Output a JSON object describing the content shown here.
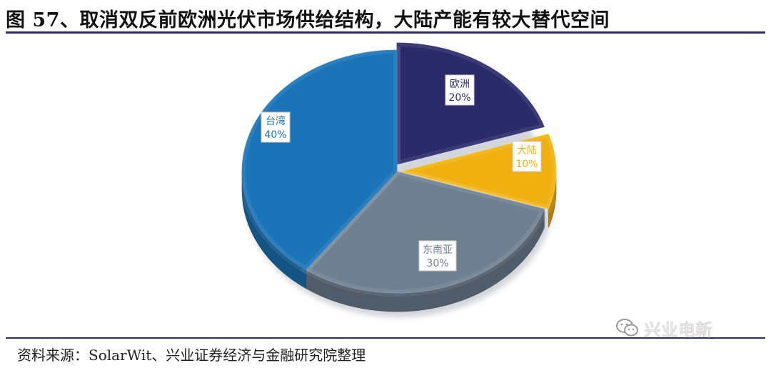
{
  "figure": {
    "title": "图 57、取消双反前欧洲光伏市场供给结构，大陆产能有较大替代空间",
    "source": "资料来源：SolarWit、兴业证券经济与金融研究院整理",
    "watermark_text": "兴业电新",
    "watermark_icon": "wechat-icon"
  },
  "chart_data": {
    "type": "pie",
    "style": "3d-exploded",
    "title": "",
    "slices": [
      {
        "label": "欧洲",
        "value": 20,
        "value_label": "20%",
        "color": "#2b2b6b",
        "label_color": "#2b2b6b"
      },
      {
        "label": "大陆",
        "value": 10,
        "value_label": "10%",
        "color": "#f0b010",
        "label_color": "#f0b010"
      },
      {
        "label": "东南亚",
        "value": 30,
        "value_label": "30%",
        "color": "#6f8092",
        "label_color": "#6f8092"
      },
      {
        "label": "台湾",
        "value": 40,
        "value_label": "40%",
        "color": "#1b74b8",
        "label_color": "#1b74b8"
      }
    ]
  }
}
